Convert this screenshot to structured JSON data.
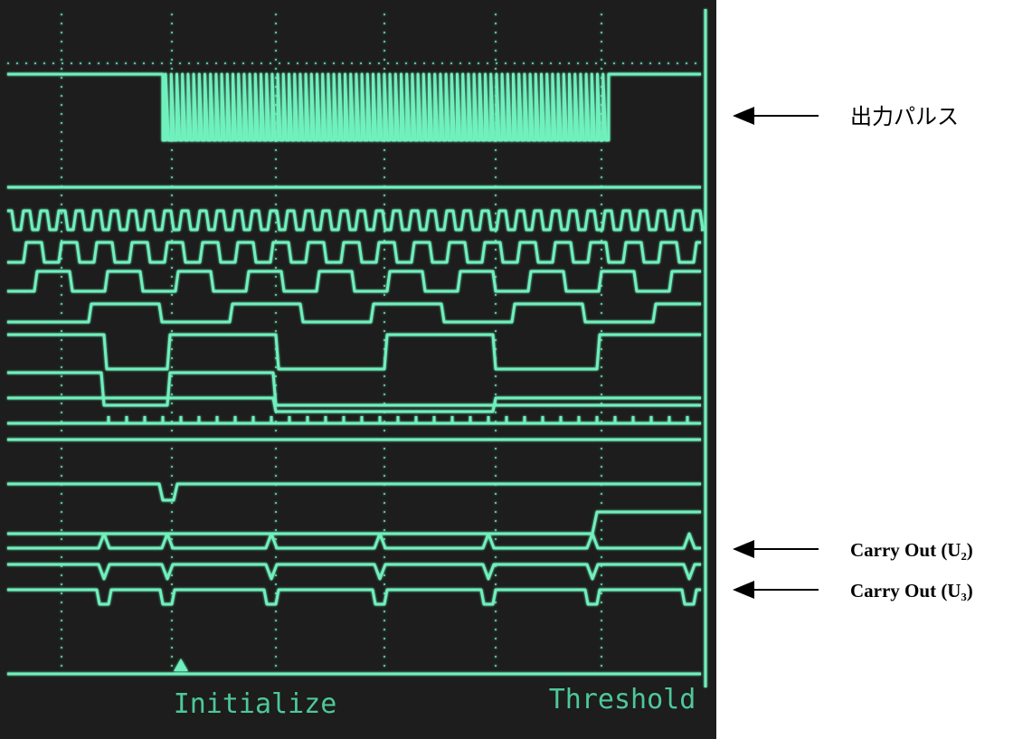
{
  "screen": {
    "labels": [
      "Initialize",
      "Threshold"
    ]
  },
  "annotations": [
    "出力パルス",
    "Carry Out (U₂)",
    "Carry Out (U₃)"
  ]
}
